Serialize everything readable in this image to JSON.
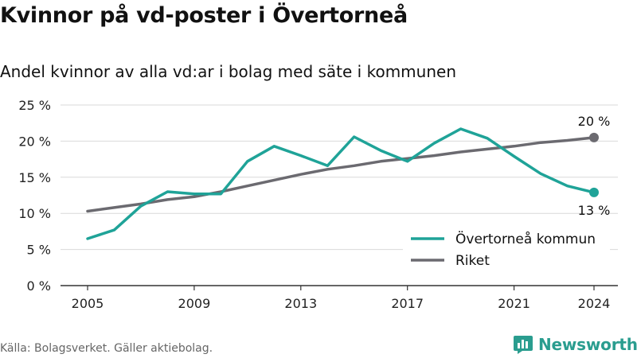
{
  "title": "Kvinnor på vd-poster i Övertorneå",
  "subtitle": "Andel kvinnor av alla vd:ar i bolag med säte i kommunen",
  "source": "Källa: Bolagsverket. Gäller aktiebolag.",
  "brand": "Newsworthy",
  "colors": {
    "overtornea": "#1fa398",
    "riket": "#6b6a70",
    "grid": "#d9d9d9",
    "axis": "#333333",
    "brand": "#2a9d8f"
  },
  "chart_data": {
    "type": "line",
    "x": [
      2005,
      2006,
      2007,
      2008,
      2009,
      2010,
      2011,
      2012,
      2013,
      2014,
      2015,
      2016,
      2017,
      2018,
      2019,
      2020,
      2021,
      2022,
      2023,
      2024
    ],
    "series": [
      {
        "name": "Övertorneå kommun",
        "color": "#1fa398",
        "values": [
          6.5,
          7.7,
          11.0,
          13.0,
          12.7,
          12.7,
          17.2,
          19.3,
          18.0,
          16.6,
          20.6,
          18.7,
          17.2,
          19.7,
          21.7,
          20.4,
          17.9,
          15.5,
          13.8,
          12.9
        ],
        "end_label": "13 %"
      },
      {
        "name": "Riket",
        "color": "#6b6a70",
        "values": [
          10.3,
          10.8,
          11.3,
          11.9,
          12.3,
          13.0,
          13.8,
          14.6,
          15.4,
          16.1,
          16.6,
          17.2,
          17.6,
          18.0,
          18.5,
          18.9,
          19.3,
          19.8,
          20.1,
          20.5
        ],
        "end_label": "20 %"
      }
    ],
    "x_ticks": [
      "2005",
      "2009",
      "2013",
      "2017",
      "2021",
      "2024"
    ],
    "y_ticks": [
      "0 %",
      "5 %",
      "10 %",
      "15 %",
      "20 %",
      "25 %"
    ],
    "ylim": [
      0,
      25
    ],
    "xlim": [
      2005,
      2024
    ],
    "grid": true,
    "legend_position": "bottom-right"
  }
}
